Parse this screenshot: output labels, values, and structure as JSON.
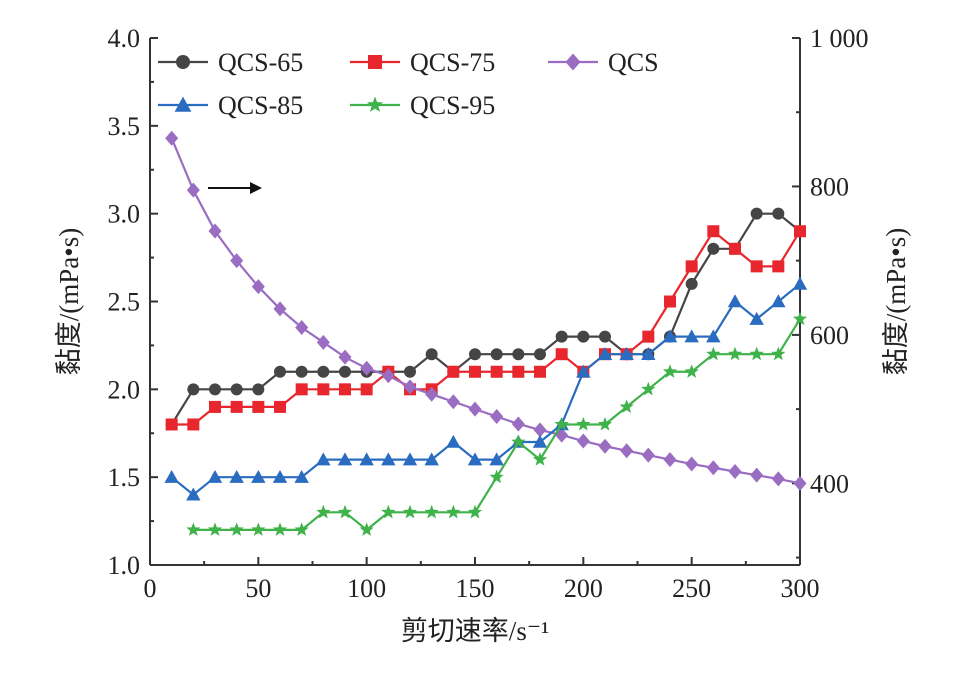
{
  "chart_data": {
    "type": "line",
    "x_axis": {
      "label": "剪切速率/s⁻¹",
      "range": [
        0,
        300
      ],
      "ticks": [
        "0",
        "50",
        "100",
        "150",
        "200",
        "250",
        "300"
      ]
    },
    "y_axis_left": {
      "label": "黏度/(mPa•s)",
      "range": [
        1.0,
        4.0
      ],
      "ticks": [
        "1.0",
        "1.5",
        "2.0",
        "2.5",
        "3.0",
        "3.5",
        "4.0"
      ]
    },
    "y_axis_right": {
      "label": "黏度/(mPa•s)",
      "range": [
        290,
        1000
      ],
      "ticks": [
        "400",
        "600",
        "800",
        "1 000"
      ],
      "tick_values": [
        400,
        600,
        800,
        1000
      ]
    },
    "grid": false,
    "legend_position": "top",
    "annotation": {
      "type": "arrow",
      "direction": "right",
      "meaning": "QCS uses right axis"
    },
    "series": [
      {
        "name": "QCS-65",
        "axis": "left",
        "color": "#454545",
        "marker": "circle",
        "x": [
          10,
          20,
          30,
          40,
          50,
          60,
          70,
          80,
          90,
          100,
          110,
          120,
          130,
          140,
          150,
          160,
          170,
          180,
          190,
          200,
          210,
          220,
          230,
          240,
          250,
          260,
          270,
          280,
          290,
          300
        ],
        "y": [
          1.8,
          2.0,
          2.0,
          2.0,
          2.0,
          2.1,
          2.1,
          2.1,
          2.1,
          2.1,
          2.1,
          2.1,
          2.2,
          2.1,
          2.2,
          2.2,
          2.2,
          2.2,
          2.3,
          2.3,
          2.3,
          2.2,
          2.2,
          2.3,
          2.6,
          2.8,
          2.8,
          3.0,
          3.0,
          2.9
        ]
      },
      {
        "name": "QCS-75",
        "axis": "left",
        "color": "#e8262d",
        "marker": "square",
        "x": [
          10,
          20,
          30,
          40,
          50,
          60,
          70,
          80,
          90,
          100,
          110,
          120,
          130,
          140,
          150,
          160,
          170,
          180,
          190,
          200,
          210,
          220,
          230,
          240,
          250,
          260,
          270,
          280,
          290,
          300
        ],
        "y": [
          1.8,
          1.8,
          1.9,
          1.9,
          1.9,
          1.9,
          2.0,
          2.0,
          2.0,
          2.0,
          2.1,
          2.0,
          2.0,
          2.1,
          2.1,
          2.1,
          2.1,
          2.1,
          2.2,
          2.1,
          2.2,
          2.2,
          2.3,
          2.5,
          2.7,
          2.9,
          2.8,
          2.7,
          2.7,
          2.9
        ]
      },
      {
        "name": "QCS",
        "axis": "right",
        "color": "#9a6cc2",
        "marker": "diamond",
        "x": [
          10,
          20,
          30,
          40,
          50,
          60,
          70,
          80,
          90,
          100,
          110,
          120,
          130,
          140,
          150,
          160,
          170,
          180,
          190,
          200,
          210,
          220,
          230,
          240,
          250,
          260,
          270,
          280,
          290,
          300
        ],
        "y": [
          865,
          795,
          740,
          700,
          665,
          635,
          610,
          590,
          570,
          555,
          545,
          530,
          520,
          510,
          500,
          490,
          480,
          472,
          465,
          457,
          450,
          444,
          438,
          432,
          426,
          421,
          416,
          411,
          406,
          400
        ]
      },
      {
        "name": "QCS-85",
        "axis": "left",
        "color": "#2a6cc0",
        "marker": "triangle",
        "x": [
          10,
          20,
          30,
          40,
          50,
          60,
          70,
          80,
          90,
          100,
          110,
          120,
          130,
          140,
          150,
          160,
          170,
          180,
          190,
          200,
          210,
          220,
          230,
          240,
          250,
          260,
          270,
          280,
          290,
          300
        ],
        "y": [
          1.5,
          1.4,
          1.5,
          1.5,
          1.5,
          1.5,
          1.5,
          1.6,
          1.6,
          1.6,
          1.6,
          1.6,
          1.6,
          1.7,
          1.6,
          1.6,
          1.7,
          1.7,
          1.8,
          2.1,
          2.2,
          2.2,
          2.2,
          2.3,
          2.3,
          2.3,
          2.5,
          2.4,
          2.5,
          2.6
        ]
      },
      {
        "name": "QCS-95",
        "axis": "left",
        "color": "#3fb24a",
        "marker": "star",
        "x": [
          20,
          30,
          40,
          50,
          60,
          70,
          80,
          90,
          100,
          110,
          120,
          130,
          140,
          150,
          160,
          170,
          180,
          190,
          200,
          210,
          220,
          230,
          240,
          250,
          260,
          270,
          280,
          290,
          300
        ],
        "y": [
          1.2,
          1.2,
          1.2,
          1.2,
          1.2,
          1.2,
          1.3,
          1.3,
          1.2,
          1.3,
          1.3,
          1.3,
          1.3,
          1.3,
          1.5,
          1.7,
          1.6,
          1.8,
          1.8,
          1.8,
          1.9,
          2.0,
          2.1,
          2.1,
          2.2,
          2.2,
          2.2,
          2.2,
          2.4
        ]
      }
    ]
  }
}
